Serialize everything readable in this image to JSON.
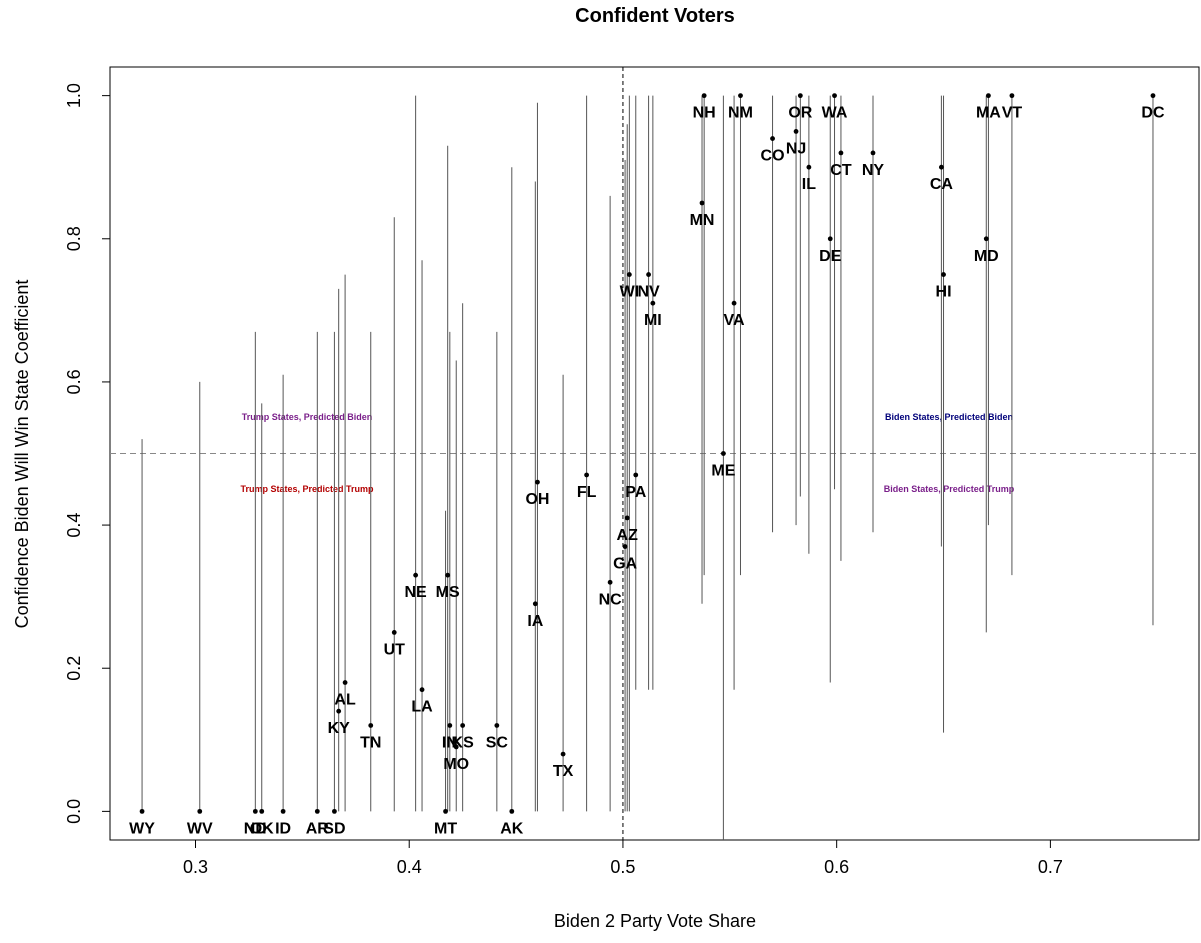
{
  "chart_data": {
    "type": "scatter",
    "title": "Confident Voters",
    "xlabel": "Biden 2 Party Vote Share",
    "ylabel": "Confidence Biden Will Win State Coefficient",
    "xlim": [
      0.26,
      0.77
    ],
    "ylim": [
      -0.04,
      1.04
    ],
    "x_ticks": [
      "0.3",
      "0.4",
      "0.5",
      "0.6",
      "0.7"
    ],
    "y_ticks": [
      "0.0",
      "0.2",
      "0.4",
      "0.6",
      "0.8",
      "1.0"
    ],
    "reference_lines": {
      "x": 0.5,
      "y": 0.5
    },
    "region_labels": [
      {
        "text": "Trump States, Predicted Biden",
        "color": "#7a1f8a"
      },
      {
        "text": "Trump States, Predicted Trump",
        "color": "#b30000"
      },
      {
        "text": "Biden States, Predicted Biden",
        "color": "#00007a"
      },
      {
        "text": "Biden States, Predicted Trump",
        "color": "#7a1f8a"
      }
    ],
    "points": [
      {
        "state": "WY",
        "x": 0.275,
        "y": 0.0,
        "lo": 0.0,
        "hi": 0.52
      },
      {
        "state": "WV",
        "x": 0.302,
        "y": 0.0,
        "lo": 0.0,
        "hi": 0.6
      },
      {
        "state": "ND",
        "x": 0.328,
        "y": 0.0,
        "lo": 0.0,
        "hi": 0.67
      },
      {
        "state": "OK",
        "x": 0.331,
        "y": 0.0,
        "lo": 0.0,
        "hi": 0.57
      },
      {
        "state": "ID",
        "x": 0.341,
        "y": 0.0,
        "lo": 0.0,
        "hi": 0.61
      },
      {
        "state": "AR",
        "x": 0.357,
        "y": 0.0,
        "lo": 0.0,
        "hi": 0.67
      },
      {
        "state": "SD",
        "x": 0.365,
        "y": 0.0,
        "lo": 0.0,
        "hi": 0.67
      },
      {
        "state": "AL",
        "x": 0.37,
        "y": 0.18,
        "lo": 0.0,
        "hi": 0.75
      },
      {
        "state": "KY",
        "x": 0.367,
        "y": 0.14,
        "lo": 0.0,
        "hi": 0.73
      },
      {
        "state": "TN",
        "x": 0.382,
        "y": 0.12,
        "lo": 0.0,
        "hi": 0.67
      },
      {
        "state": "UT",
        "x": 0.393,
        "y": 0.25,
        "lo": 0.0,
        "hi": 0.83
      },
      {
        "state": "NE",
        "x": 0.403,
        "y": 0.33,
        "lo": 0.0,
        "hi": 1.0
      },
      {
        "state": "LA",
        "x": 0.406,
        "y": 0.17,
        "lo": 0.0,
        "hi": 0.77
      },
      {
        "state": "MS",
        "x": 0.418,
        "y": 0.33,
        "lo": 0.0,
        "hi": 0.93
      },
      {
        "state": "MT",
        "x": 0.417,
        "y": 0.0,
        "lo": 0.0,
        "hi": 0.42
      },
      {
        "state": "IN",
        "x": 0.419,
        "y": 0.12,
        "lo": 0.0,
        "hi": 0.67
      },
      {
        "state": "KS",
        "x": 0.425,
        "y": 0.12,
        "lo": 0.0,
        "hi": 0.71
      },
      {
        "state": "MO",
        "x": 0.422,
        "y": 0.09,
        "lo": 0.0,
        "hi": 0.63
      },
      {
        "state": "SC",
        "x": 0.441,
        "y": 0.12,
        "lo": 0.0,
        "hi": 0.67
      },
      {
        "state": "AK",
        "x": 0.448,
        "y": 0.0,
        "lo": 0.0,
        "hi": 0.9
      },
      {
        "state": "IA",
        "x": 0.459,
        "y": 0.29,
        "lo": 0.0,
        "hi": 0.88
      },
      {
        "state": "OH",
        "x": 0.46,
        "y": 0.46,
        "lo": 0.0,
        "hi": 0.99
      },
      {
        "state": "TX",
        "x": 0.472,
        "y": 0.08,
        "lo": 0.0,
        "hi": 0.61
      },
      {
        "state": "FL",
        "x": 0.483,
        "y": 0.47,
        "lo": 0.0,
        "hi": 1.0
      },
      {
        "state": "NC",
        "x": 0.494,
        "y": 0.32,
        "lo": 0.0,
        "hi": 0.86
      },
      {
        "state": "GA",
        "x": 0.501,
        "y": 0.37,
        "lo": 0.0,
        "hi": 0.91
      },
      {
        "state": "AZ",
        "x": 0.502,
        "y": 0.41,
        "lo": 0.0,
        "hi": 0.96
      },
      {
        "state": "PA",
        "x": 0.506,
        "y": 0.47,
        "lo": 0.17,
        "hi": 1.0
      },
      {
        "state": "WI",
        "x": 0.503,
        "y": 0.75,
        "lo": 0.0,
        "hi": 1.0
      },
      {
        "state": "NV",
        "x": 0.512,
        "y": 0.75,
        "lo": 0.17,
        "hi": 1.0
      },
      {
        "state": "MI",
        "x": 0.514,
        "y": 0.71,
        "lo": 0.17,
        "hi": 1.0
      },
      {
        "state": "MN",
        "x": 0.537,
        "y": 0.85,
        "lo": 0.29,
        "hi": 1.0
      },
      {
        "state": "NH",
        "x": 0.538,
        "y": 1.0,
        "lo": 0.33,
        "hi": 1.0
      },
      {
        "state": "ME",
        "x": 0.547,
        "y": 0.5,
        "lo": -0.04,
        "hi": 1.0
      },
      {
        "state": "VA",
        "x": 0.552,
        "y": 0.71,
        "lo": 0.17,
        "hi": 1.0
      },
      {
        "state": "NM",
        "x": 0.555,
        "y": 1.0,
        "lo": 0.33,
        "hi": 1.0
      },
      {
        "state": "CO",
        "x": 0.57,
        "y": 0.94,
        "lo": 0.39,
        "hi": 1.0
      },
      {
        "state": "NJ",
        "x": 0.581,
        "y": 0.95,
        "lo": 0.4,
        "hi": 1.0
      },
      {
        "state": "OR",
        "x": 0.583,
        "y": 1.0,
        "lo": 0.44,
        "hi": 1.0
      },
      {
        "state": "IL",
        "x": 0.587,
        "y": 0.9,
        "lo": 0.36,
        "hi": 1.0
      },
      {
        "state": "DE",
        "x": 0.597,
        "y": 0.8,
        "lo": 0.18,
        "hi": 1.0
      },
      {
        "state": "WA",
        "x": 0.599,
        "y": 1.0,
        "lo": 0.45,
        "hi": 1.0
      },
      {
        "state": "CT",
        "x": 0.602,
        "y": 0.92,
        "lo": 0.35,
        "hi": 1.0
      },
      {
        "state": "NY",
        "x": 0.617,
        "y": 0.92,
        "lo": 0.39,
        "hi": 1.0
      },
      {
        "state": "CA",
        "x": 0.649,
        "y": 0.9,
        "lo": 0.37,
        "hi": 1.0
      },
      {
        "state": "HI",
        "x": 0.65,
        "y": 0.75,
        "lo": 0.11,
        "hi": 1.0
      },
      {
        "state": "MD",
        "x": 0.67,
        "y": 0.8,
        "lo": 0.25,
        "hi": 1.0
      },
      {
        "state": "MA",
        "x": 0.671,
        "y": 1.0,
        "lo": 0.4,
        "hi": 1.0
      },
      {
        "state": "VT",
        "x": 0.682,
        "y": 1.0,
        "lo": 0.33,
        "hi": 1.0
      },
      {
        "state": "DC",
        "x": 0.748,
        "y": 1.0,
        "lo": 0.26,
        "hi": 1.0
      }
    ]
  }
}
